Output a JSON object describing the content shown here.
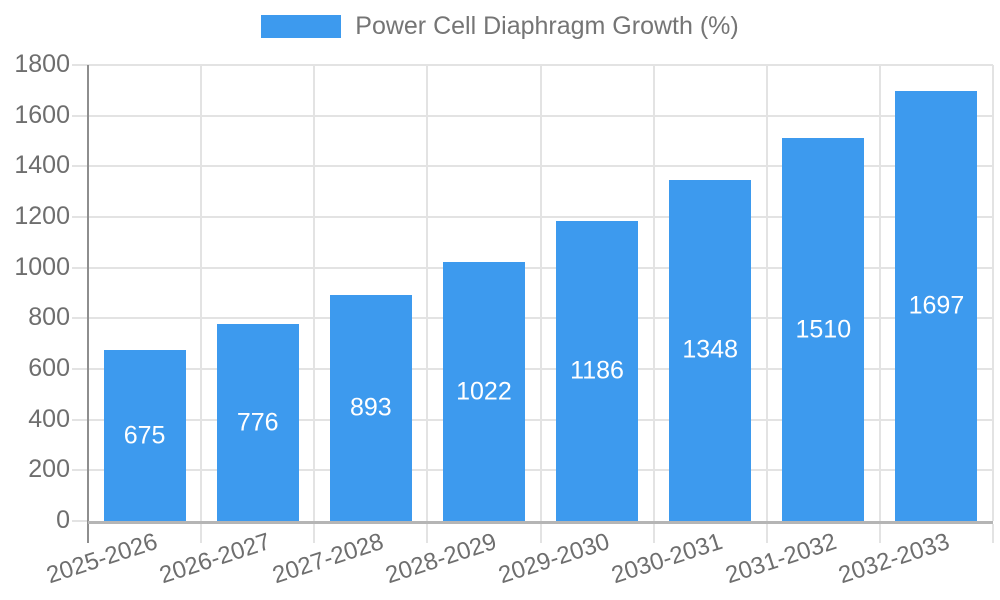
{
  "chart_data": {
    "type": "bar",
    "title": "Power Cell Diaphragm Growth (%)",
    "categories": [
      "2025-2026",
      "2026-2027",
      "2027-2028",
      "2028-2029",
      "2029-2030",
      "2030-2031",
      "2031-2032",
      "2032-2033"
    ],
    "values": [
      675,
      776,
      893,
      1022,
      1186,
      1348,
      1510,
      1697
    ],
    "value_labels": [
      "675",
      "776",
      "893",
      "1022",
      "1186",
      "1348",
      "1510",
      "1697"
    ],
    "xlabel": "",
    "ylabel": "",
    "ylim": [
      0,
      1800
    ],
    "ytick_step": 200,
    "yticks": [
      "0",
      "200",
      "400",
      "600",
      "800",
      "1000",
      "1200",
      "1400",
      "1600",
      "1800"
    ],
    "grid": true,
    "legend_position": "top",
    "x_label_rotation_deg": -18
  },
  "colors": {
    "bar": "#3D9AEE",
    "grid": "#E3E3E3",
    "axis_line": "#8E8E8E",
    "baseline": "#B5B5B5",
    "axis_text": "#6E6E6E",
    "legend_text": "#757575",
    "value_label_text": "#FFFFFF",
    "background": "#FFFFFF"
  }
}
